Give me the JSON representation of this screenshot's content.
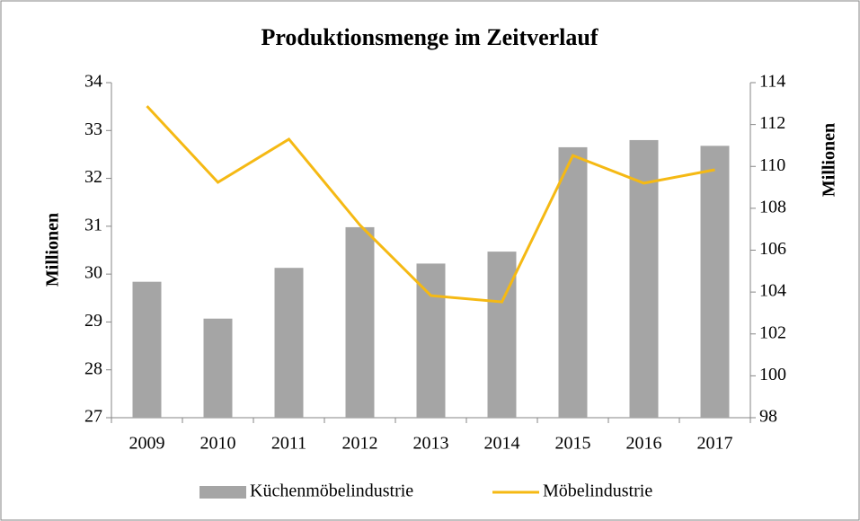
{
  "chart_data": {
    "type": "bar_line",
    "title": "Produktionsmenge im Zeitverlauf",
    "categories": [
      "2009",
      "2010",
      "2011",
      "2012",
      "2013",
      "2014",
      "2015",
      "2016",
      "2017"
    ],
    "series": [
      {
        "name": "Küchenmöbelindustrie",
        "type": "bar",
        "color": "#a5a5a5",
        "axis": "y",
        "values": [
          29.84,
          29.07,
          30.13,
          30.98,
          30.22,
          30.47,
          32.65,
          32.8,
          32.68
        ]
      },
      {
        "name": "Möbelindustrie",
        "type": "line",
        "color": "#f5b914",
        "axis": "y2",
        "values": [
          112.88,
          109.24,
          111.3,
          107.2,
          103.83,
          103.53,
          110.52,
          109.2,
          109.84
        ]
      }
    ],
    "ylabel": "Millionen",
    "y2label": "Millionen",
    "ylim": [
      27,
      34
    ],
    "yticks": [
      27,
      28,
      29,
      30,
      31,
      32,
      33,
      34
    ],
    "y2lim": [
      98,
      114
    ],
    "y2ticks": [
      98,
      100,
      102,
      104,
      106,
      108,
      110,
      112,
      114
    ],
    "legend": "bottom",
    "grid": false
  }
}
